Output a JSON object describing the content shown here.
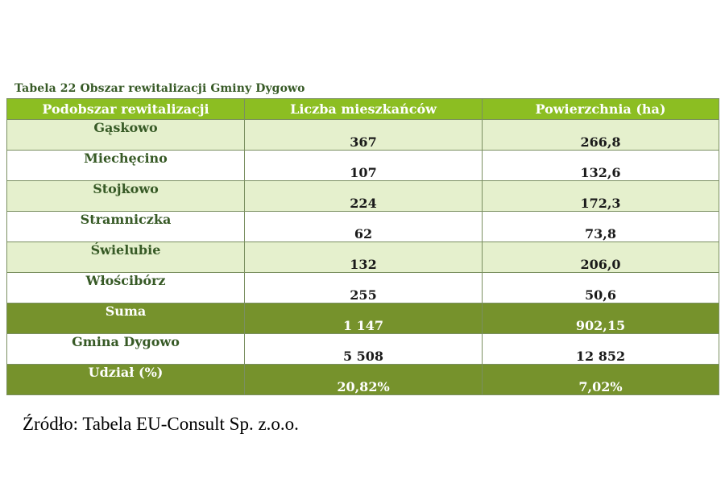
{
  "caption": "Tabela 22 Obszar rewitalizacji Gminy Dygowo",
  "table": {
    "headers": [
      "Podobszar rewitalizacji",
      "Liczba mieszkańców",
      "Powierzchnia (ha)"
    ],
    "rows": [
      [
        "Gąskowo",
        "367",
        "266,8"
      ],
      [
        "Miechęcino",
        "107",
        "132,6"
      ],
      [
        "Stojkowo",
        "224",
        "172,3"
      ],
      [
        "Stramniczka",
        "62",
        "73,8"
      ],
      [
        "Świelubie",
        "132",
        "206,0"
      ],
      [
        "Włościbórz",
        "255",
        "50,6"
      ],
      [
        "Suma",
        "1 147",
        "902,15"
      ],
      [
        "Gmina Dygowo",
        "5 508",
        "12 852"
      ],
      [
        "Udział (%)",
        "20,82%",
        "7,02%"
      ]
    ]
  },
  "source": "Źródło: Tabela EU-Consult Sp. z.o.o.",
  "colors": {
    "header_bg": "#8cbe22",
    "light_row_bg": "#e5f0cd",
    "dark_row_bg": "#76922c",
    "text_green": "#375a26"
  }
}
